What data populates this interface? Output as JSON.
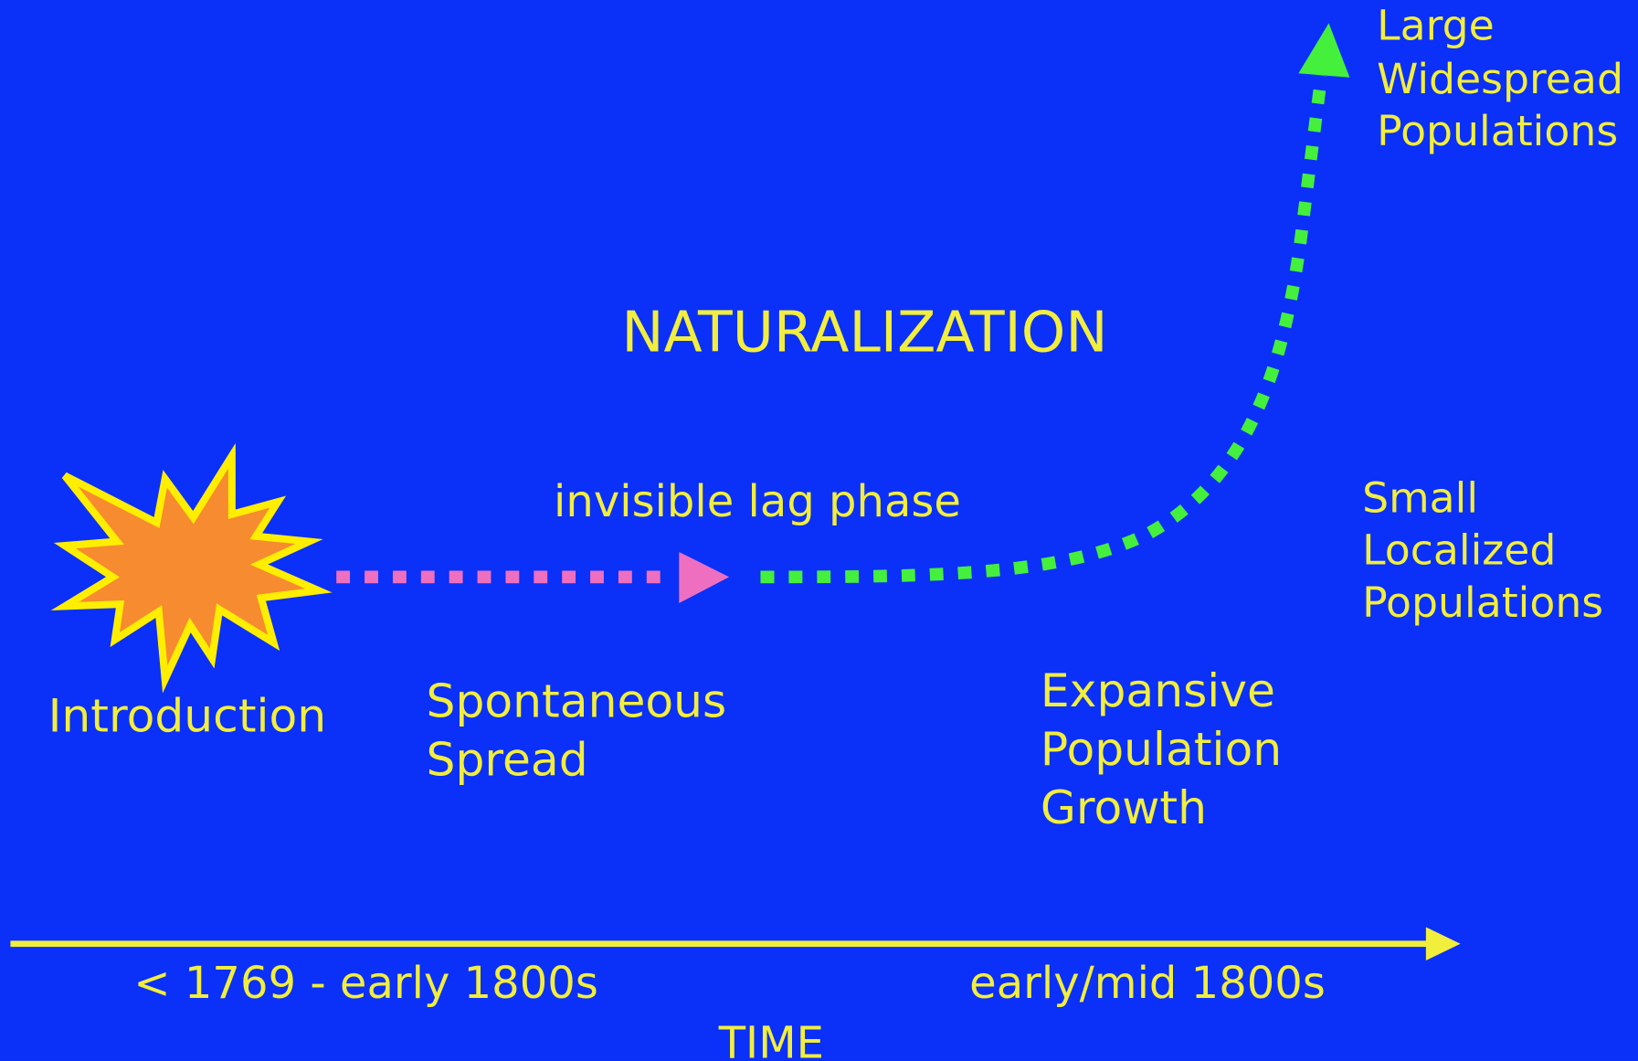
{
  "title": "NATURALIZATION",
  "stages": {
    "introduction": "Introduction",
    "spontaneous_spread": [
      "Spontaneous",
      "Spread"
    ],
    "lag_phase": "invisible lag phase",
    "expansive_growth": [
      "Expansive",
      "Population",
      "Growth"
    ],
    "small_populations": [
      "Small",
      "Localized",
      "Populations"
    ],
    "large_populations": [
      "Large",
      "Widespread",
      "Populations"
    ]
  },
  "timeline": {
    "early_period": "< 1769 - early 1800s",
    "late_period": "early/mid 1800s",
    "axis_label": "TIME"
  }
}
